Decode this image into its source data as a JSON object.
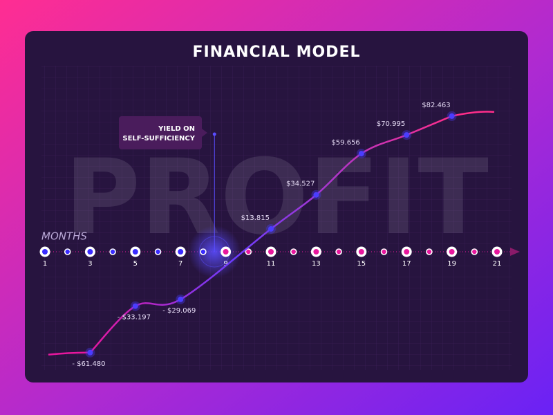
{
  "chart_data": {
    "type": "line",
    "title": "FINANCIAL MODEL",
    "background_text": "PROFIT",
    "x_label": "MONTHS",
    "x": [
      3,
      5,
      7,
      11,
      13,
      15,
      17,
      19
    ],
    "values": [
      -61480,
      -33197,
      -29069,
      13815,
      34527,
      59656,
      70995,
      82463
    ],
    "value_labels": [
      "- $61.480",
      "- $33.197",
      "- $29.069",
      "$13.815",
      "$34.527",
      "$59.656",
      "$70.995",
      "$82.463"
    ],
    "xlim": [
      1,
      21
    ],
    "xticks": [
      1,
      3,
      5,
      7,
      9,
      11,
      13,
      15,
      17,
      19,
      21
    ],
    "minor_xticks": [
      2,
      4,
      6,
      8,
      10,
      12,
      14,
      16,
      18,
      20
    ],
    "ylim": [
      -70000,
      90000
    ],
    "annotation": {
      "lines": [
        "YIELD ON",
        "SELF-SUFFICIENCY"
      ],
      "x": 8.5
    },
    "point_color": "#4b3dff",
    "before_color": "#3a2bff",
    "after_color": "#e8179e"
  }
}
